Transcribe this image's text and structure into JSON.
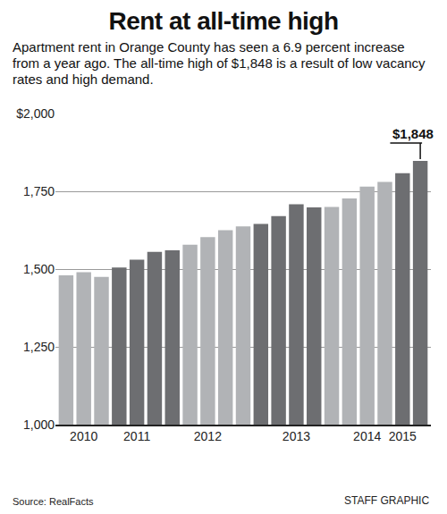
{
  "chart_data": {
    "type": "bar",
    "title": "Rent at all-time high",
    "subtitle": "Apartment rent in Orange County has seen a 6.9 percent increase from a year ago. The all-time high of $1,848 is a result of low vacancy rates and high demand.",
    "categories": [
      null,
      "2010",
      null,
      null,
      "2011",
      null,
      null,
      null,
      "2012",
      null,
      null,
      null,
      null,
      "2013",
      null,
      null,
      null,
      "2014",
      null,
      "2015",
      null
    ],
    "values": [
      1480,
      1490,
      1475,
      1505,
      1530,
      1555,
      1560,
      1578,
      1603,
      1625,
      1637,
      1645,
      1670,
      1708,
      1698,
      1700,
      1727,
      1765,
      1780,
      1808,
      1848
    ],
    "value_labels": [
      null,
      null,
      null,
      null,
      null,
      null,
      null,
      null,
      null,
      null,
      null,
      null,
      null,
      null,
      null,
      null,
      null,
      null,
      null,
      null,
      "$1,848"
    ],
    "colors": [
      "#b1b3b6",
      "#b1b3b6",
      "#b1b3b6",
      "#6d6e71",
      "#6d6e71",
      "#6d6e71",
      "#6d6e71",
      "#b1b3b6",
      "#b1b3b6",
      "#b1b3b6",
      "#b1b3b6",
      "#6d6e71",
      "#6d6e71",
      "#6d6e71",
      "#6d6e71",
      "#b1b3b6",
      "#b1b3b6",
      "#b1b3b6",
      "#b1b3b6",
      "#6d6e71",
      "#6d6e71"
    ],
    "ylim": [
      1000,
      2000
    ],
    "yticks": [
      {
        "value": 1000,
        "label": "1,000"
      },
      {
        "value": 1250,
        "label": "1,250"
      },
      {
        "value": 1500,
        "label": "1,500"
      },
      {
        "value": 1750,
        "label": "1,750"
      },
      {
        "value": 2000,
        "label": "$2,000"
      }
    ],
    "grid": true,
    "source": "Source: RealFacts",
    "credit": "STAFF GRAPHIC"
  }
}
